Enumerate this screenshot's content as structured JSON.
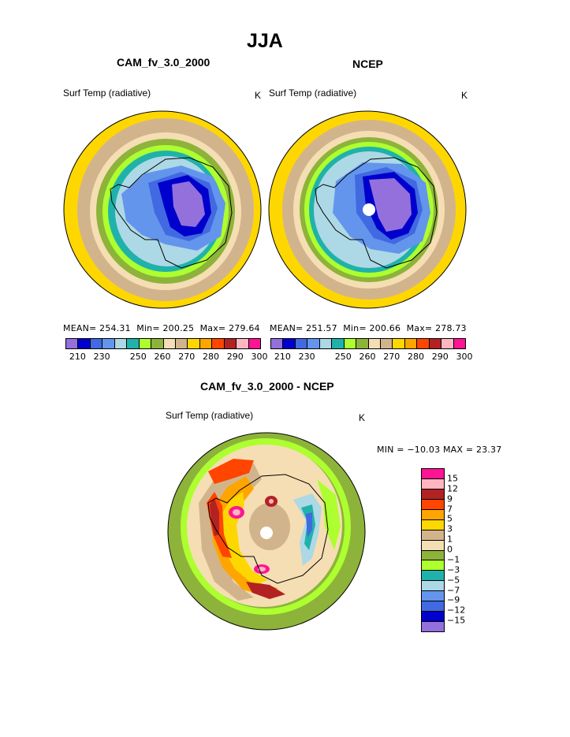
{
  "page_title": "JJA",
  "palette_abs": [
    "#9370DB",
    "#0000CD",
    "#4169E1",
    "#6495ED",
    "#ADD8E6",
    "#20B2AA",
    "#ADFF2F",
    "#8DB33A",
    "#F5DEB3",
    "#D2B48C",
    "#FFD700",
    "#FFA500",
    "#FF4500",
    "#B22222",
    "#FFB6C1",
    "#FF1493"
  ],
  "palette_diff": [
    "#FF1493",
    "#FFB6C1",
    "#B22222",
    "#FF4500",
    "#FFA500",
    "#FFD700",
    "#D2B48C",
    "#F5DEB3",
    "#8DB33A",
    "#ADFF2F",
    "#20B2AA",
    "#ADD8E6",
    "#6495ED",
    "#4169E1",
    "#0000CD",
    "#9370DB"
  ],
  "chart_data": [
    {
      "type": "heatmap",
      "projection": "south-polar-stereographic",
      "title": "CAM_fv_3.0_2000",
      "variable": "Surf Temp (radiative)",
      "units": "K",
      "stats": {
        "mean": "254.31",
        "min": "200.25",
        "max": "279.64"
      },
      "mean_label": "MEAN=",
      "min_label": "Min=",
      "max_label": "Max=",
      "colorbar_ticks": [
        "210",
        "230",
        "250",
        "260",
        "270",
        "280",
        "290",
        "300"
      ],
      "colorbar_levels": [
        205,
        210,
        220,
        230,
        240,
        245,
        250,
        255,
        260,
        265,
        270,
        275,
        280,
        285,
        290,
        295,
        300
      ]
    },
    {
      "type": "heatmap",
      "projection": "south-polar-stereographic",
      "title": "NCEP",
      "variable": "Surf Temp (radiative)",
      "units": "K",
      "stats": {
        "mean": "251.57",
        "min": "200.66",
        "max": "278.73"
      },
      "mean_label": "MEAN=",
      "min_label": "Min=",
      "max_label": "Max=",
      "colorbar_ticks": [
        "210",
        "230",
        "250",
        "260",
        "270",
        "280",
        "290",
        "300"
      ],
      "colorbar_levels": [
        205,
        210,
        220,
        230,
        240,
        245,
        250,
        255,
        260,
        265,
        270,
        275,
        280,
        285,
        290,
        295,
        300
      ]
    },
    {
      "type": "heatmap",
      "projection": "south-polar-stereographic",
      "title": "CAM_fv_3.0_2000 - NCEP",
      "variable": "Surf Temp (radiative)",
      "units": "K",
      "stats_text": "MIN = −10.03 MAX =   23.37",
      "colorbar_ticks": [
        "15",
        "12",
        "9",
        "7",
        "5",
        "3",
        "1",
        "0",
        "−1",
        "−3",
        "−5",
        "−7",
        "−9",
        "−12",
        "−15"
      ]
    }
  ]
}
